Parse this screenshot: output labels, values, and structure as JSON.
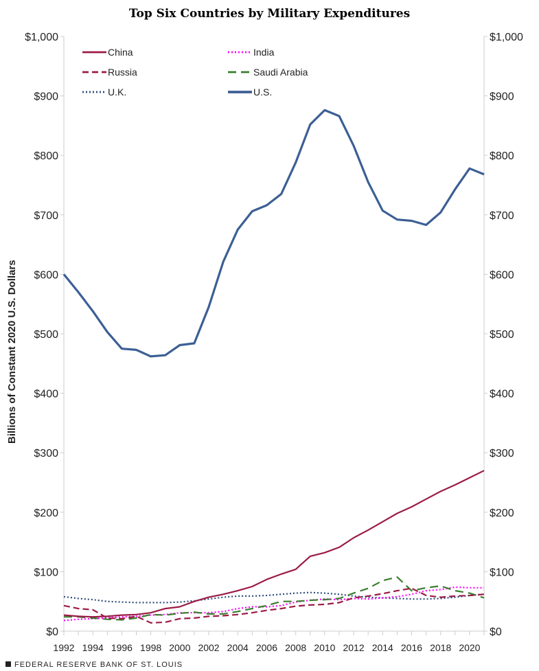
{
  "chart_data": {
    "type": "line",
    "title": "Top Six Countries by Military Expenditures",
    "ylabel": "Billions of Constant 2020 U.S. Dollars",
    "xlabel": "",
    "ylim": [
      0,
      1000
    ],
    "xlim": [
      1992,
      2021
    ],
    "y_ticks": [
      "$0",
      "$100",
      "$200",
      "$300",
      "$400",
      "$500",
      "$600",
      "$700",
      "$800",
      "$900",
      "$1,000"
    ],
    "x_ticks": [
      "1992",
      "1994",
      "1996",
      "1998",
      "2000",
      "2002",
      "2004",
      "2006",
      "2008",
      "2010",
      "2012",
      "2014",
      "2016",
      "2018",
      "2020"
    ],
    "legend_position": "top-left",
    "x": [
      1992,
      1993,
      1994,
      1995,
      1996,
      1997,
      1998,
      1999,
      2000,
      2001,
      2002,
      2003,
      2004,
      2005,
      2006,
      2007,
      2008,
      2009,
      2010,
      2011,
      2012,
      2013,
      2014,
      2015,
      2016,
      2017,
      2018,
      2019,
      2020,
      2021
    ],
    "series": [
      {
        "name": "China",
        "color": "#9b1b45",
        "style": "solid",
        "values": [
          27,
          25,
          24,
          25,
          27,
          28,
          31,
          38,
          41,
          50,
          57,
          62,
          68,
          75,
          87,
          96,
          104,
          126,
          132,
          141,
          157,
          170,
          184,
          198,
          209,
          222,
          235,
          246,
          258,
          270
        ]
      },
      {
        "name": "India",
        "color": "#ff00ff",
        "style": "dotted",
        "values": [
          18,
          20,
          21,
          22,
          24,
          25,
          27,
          28,
          31,
          31,
          31,
          33,
          38,
          41,
          41,
          43,
          49,
          52,
          54,
          53,
          55,
          54,
          56,
          58,
          62,
          68,
          70,
          74,
          73,
          73
        ]
      },
      {
        "name": "Russia",
        "color": "#9b1b45",
        "style": "dashed",
        "values": [
          43,
          38,
          36,
          22,
          21,
          25,
          14,
          15,
          21,
          22,
          25,
          26,
          28,
          31,
          35,
          38,
          42,
          44,
          45,
          48,
          56,
          59,
          63,
          68,
          72,
          60,
          57,
          59,
          60,
          62
        ]
      },
      {
        "name": "Saudi Arabia",
        "color": "#3a7d2e",
        "style": "longdash",
        "values": [
          24,
          24,
          22,
          20,
          19,
          22,
          28,
          27,
          30,
          32,
          29,
          29,
          33,
          38,
          43,
          50,
          50,
          52,
          53,
          55,
          64,
          72,
          85,
          91,
          68,
          73,
          76,
          68,
          64,
          56
        ]
      },
      {
        "name": "U.K.",
        "color": "#2e4a7a",
        "style": "dotted",
        "values": [
          58,
          55,
          53,
          50,
          49,
          48,
          48,
          48,
          49,
          51,
          54,
          57,
          59,
          59,
          60,
          62,
          64,
          65,
          64,
          62,
          59,
          57,
          56,
          55,
          54,
          54,
          55,
          57,
          60,
          62
        ]
      },
      {
        "name": "U.S.",
        "color": "#3c5f94",
        "style": "thick",
        "values": [
          600,
          570,
          538,
          503,
          475,
          473,
          462,
          464,
          481,
          484,
          545,
          621,
          675,
          706,
          716,
          735,
          788,
          852,
          876,
          866,
          816,
          755,
          707,
          692,
          690,
          683,
          704,
          743,
          778,
          768
        ]
      }
    ]
  },
  "footer": "FEDERAL RESERVE BANK OF ST. LOUIS"
}
